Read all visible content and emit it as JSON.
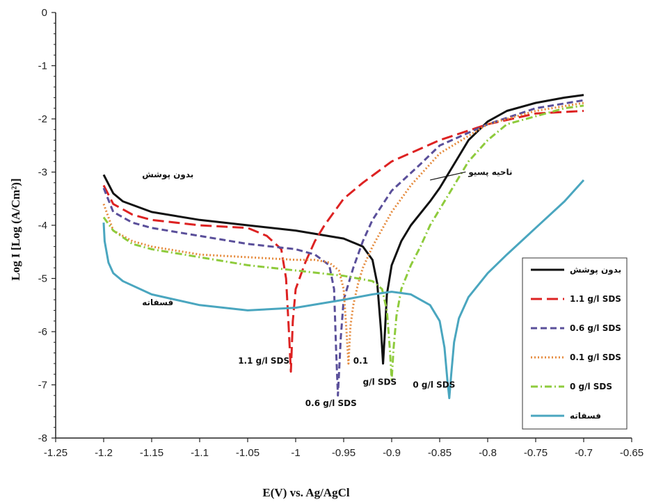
{
  "chart_data": {
    "type": "line",
    "title": "",
    "xlabel": "E(V) vs. Ag/AgCl",
    "ylabel": "Log I [Log (A/Cm²)]",
    "xlim": [
      -1.25,
      -0.65
    ],
    "ylim": [
      -8,
      0
    ],
    "x_ticks": [
      "-1.25",
      "-1.2",
      "-1.15",
      "-1.1",
      "-1.05",
      "-1",
      "-0.95",
      "-0.9",
      "-0.85",
      "-0.8",
      "-0.75",
      "-0.7",
      "-0.65"
    ],
    "x_tick_values": [
      -1.25,
      -1.2,
      -1.15,
      -1.1,
      -1.05,
      -1.0,
      -0.95,
      -0.9,
      -0.85,
      -0.8,
      -0.75,
      -0.7,
      -0.65
    ],
    "y_ticks": [
      "0",
      "-1",
      "-2",
      "-3",
      "-4",
      "-5",
      "-6",
      "-7",
      "-8"
    ],
    "y_tick_values": [
      0,
      -1,
      -2,
      -3,
      -4,
      -5,
      -6,
      -7,
      -8
    ],
    "grid": false,
    "legend_position": "bottom-right",
    "series": [
      {
        "name": "بدون پوشش",
        "color": "#111111",
        "dash": "solid",
        "x": [
          -1.2,
          -1.19,
          -1.18,
          -1.15,
          -1.1,
          -1.05,
          -1.0,
          -0.95,
          -0.93,
          -0.92,
          -0.915,
          -0.911,
          -0.909,
          -0.907,
          -0.905,
          -0.9,
          -0.89,
          -0.88,
          -0.86,
          -0.85,
          -0.84,
          -0.83,
          -0.82,
          -0.8,
          -0.78,
          -0.75,
          -0.72,
          -0.7
        ],
        "y": [
          -3.05,
          -3.4,
          -3.55,
          -3.75,
          -3.9,
          -4.0,
          -4.1,
          -4.25,
          -4.4,
          -4.65,
          -5.1,
          -6.0,
          -6.6,
          -6.0,
          -5.3,
          -4.75,
          -4.3,
          -4.0,
          -3.55,
          -3.3,
          -3.0,
          -2.7,
          -2.4,
          -2.05,
          -1.85,
          -1.7,
          -1.6,
          -1.55
        ]
      },
      {
        "name": "1.1 g/l SDS",
        "color": "#dd2222",
        "dash": "long-dash",
        "x": [
          -1.2,
          -1.19,
          -1.17,
          -1.15,
          -1.1,
          -1.05,
          -1.03,
          -1.015,
          -1.01,
          -1.007,
          -1.005,
          -1.003,
          -1.0,
          -0.99,
          -0.98,
          -0.97,
          -0.95,
          -0.93,
          -0.9,
          -0.85,
          -0.8,
          -0.75,
          -0.7
        ],
        "y": [
          -3.25,
          -3.6,
          -3.8,
          -3.9,
          -4.0,
          -4.05,
          -4.2,
          -4.45,
          -5.0,
          -6.0,
          -6.75,
          -5.8,
          -5.2,
          -4.7,
          -4.3,
          -4.0,
          -3.5,
          -3.2,
          -2.8,
          -2.4,
          -2.1,
          -1.9,
          -1.85
        ]
      },
      {
        "name": "0.6 g/l SDS",
        "color": "#5a4f9a",
        "dash": "dash",
        "x": [
          -1.2,
          -1.19,
          -1.17,
          -1.15,
          -1.1,
          -1.05,
          -1.0,
          -0.98,
          -0.965,
          -0.96,
          -0.958,
          -0.956,
          -0.953,
          -0.95,
          -0.94,
          -0.93,
          -0.92,
          -0.9,
          -0.87,
          -0.85,
          -0.8,
          -0.75,
          -0.7
        ],
        "y": [
          -3.3,
          -3.75,
          -3.95,
          -4.05,
          -4.2,
          -4.35,
          -4.45,
          -4.55,
          -4.75,
          -5.2,
          -6.3,
          -7.2,
          -6.1,
          -5.4,
          -4.8,
          -4.3,
          -3.9,
          -3.35,
          -2.85,
          -2.5,
          -2.1,
          -1.8,
          -1.65
        ]
      },
      {
        "name": "0.1 g/l SDS",
        "color": "#e58a3c",
        "dash": "dotted",
        "x": [
          -1.2,
          -1.19,
          -1.17,
          -1.15,
          -1.1,
          -1.05,
          -1.0,
          -0.98,
          -0.965,
          -0.955,
          -0.95,
          -0.947,
          -0.945,
          -0.943,
          -0.94,
          -0.935,
          -0.93,
          -0.92,
          -0.9,
          -0.88,
          -0.85,
          -0.8,
          -0.75,
          -0.7
        ],
        "y": [
          -3.6,
          -4.1,
          -4.3,
          -4.4,
          -4.55,
          -4.6,
          -4.65,
          -4.65,
          -4.7,
          -4.85,
          -5.2,
          -6.0,
          -6.6,
          -5.9,
          -5.5,
          -5.1,
          -4.8,
          -4.4,
          -3.75,
          -3.25,
          -2.65,
          -2.1,
          -1.85,
          -1.7
        ]
      },
      {
        "name": "0 g/l SDS",
        "color": "#8ecb3c",
        "dash": "dash-dot",
        "x": [
          -1.2,
          -1.19,
          -1.17,
          -1.15,
          -1.1,
          -1.05,
          -1.0,
          -0.95,
          -0.92,
          -0.91,
          -0.905,
          -0.902,
          -0.9,
          -0.898,
          -0.895,
          -0.89,
          -0.88,
          -0.87,
          -0.86,
          -0.84,
          -0.82,
          -0.8,
          -0.78,
          -0.75,
          -0.72,
          -0.7
        ],
        "y": [
          -3.85,
          -4.1,
          -4.35,
          -4.45,
          -4.6,
          -4.75,
          -4.85,
          -4.95,
          -5.05,
          -5.2,
          -5.6,
          -6.3,
          -6.9,
          -6.3,
          -5.7,
          -5.2,
          -4.75,
          -4.4,
          -4.0,
          -3.4,
          -2.8,
          -2.4,
          -2.1,
          -1.95,
          -1.8,
          -1.75
        ]
      },
      {
        "name": "فسفاته",
        "color": "#4aa6bf",
        "dash": "solid",
        "x": [
          -1.2,
          -1.199,
          -1.195,
          -1.19,
          -1.18,
          -1.15,
          -1.1,
          -1.05,
          -1.0,
          -0.95,
          -0.92,
          -0.9,
          -0.88,
          -0.86,
          -0.85,
          -0.845,
          -0.842,
          -0.84,
          -0.838,
          -0.835,
          -0.83,
          -0.82,
          -0.8,
          -0.78,
          -0.75,
          -0.72,
          -0.7
        ],
        "y": [
          -3.95,
          -4.3,
          -4.7,
          -4.9,
          -5.05,
          -5.3,
          -5.5,
          -5.6,
          -5.55,
          -5.4,
          -5.3,
          -5.25,
          -5.3,
          -5.5,
          -5.8,
          -6.3,
          -6.9,
          -7.25,
          -6.8,
          -6.2,
          -5.75,
          -5.35,
          -4.9,
          -4.55,
          -4.05,
          -3.55,
          -3.15
        ]
      }
    ],
    "annotations": [
      {
        "text": "بدون پوشش",
        "x": -1.16,
        "y": -3.1
      },
      {
        "text": "ناحیه پسیو",
        "x": -0.82,
        "y": -3.05,
        "arrow_to": [
          -0.86,
          -3.15
        ]
      },
      {
        "text": "فسفاته",
        "x": -1.16,
        "y": -5.5
      },
      {
        "text": "1.1 g/l SDS",
        "x": -1.06,
        "y": -6.6
      },
      {
        "text": "0.1",
        "x": -0.94,
        "y": -6.6
      },
      {
        "text": "g/l SDS",
        "x": -0.93,
        "y": -7.0
      },
      {
        "text": "0.6 g/l SDS",
        "x": -0.99,
        "y": -7.4
      },
      {
        "text": "0 g/l SDS",
        "x": -0.878,
        "y": -7.05
      }
    ]
  }
}
